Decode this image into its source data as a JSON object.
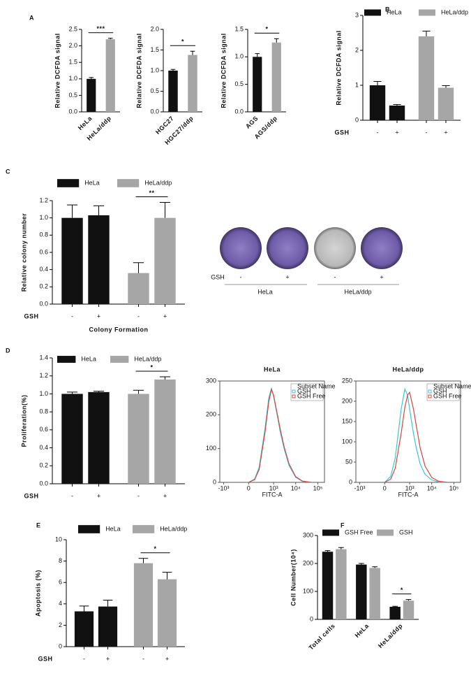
{
  "chart_data": [
    {
      "type": "bar",
      "panel": "A",
      "y_label": "Relative DCFDA signal",
      "categories": [
        "HeLa",
        "HeLa/ddp"
      ],
      "values": [
        1.0,
        2.2
      ],
      "errors": [
        0.04,
        0.03
      ],
      "colors": [
        "#111111",
        "#a6a6a6"
      ],
      "ylim": [
        0,
        2.5
      ],
      "yticks": [
        {
          "value": 0,
          "label": "0.0"
        },
        {
          "value": 0.5,
          "label": "0.5"
        },
        {
          "value": 1,
          "label": "1.0"
        },
        {
          "value": 1.5,
          "label": "1.5"
        },
        {
          "value": 2,
          "label": "2.0"
        },
        {
          "value": 2.5,
          "label": "2.5"
        }
      ],
      "significance": "***"
    },
    {
      "type": "bar",
      "y_label": "Relative DCFDA signal",
      "categories": [
        "HGC27",
        "HGC27/ddp"
      ],
      "values": [
        1.0,
        1.38
      ],
      "errors": [
        0.03,
        0.09
      ],
      "colors": [
        "#111111",
        "#a6a6a6"
      ],
      "ylim": [
        0,
        2
      ],
      "yticks": [
        {
          "value": 0,
          "label": "0.0"
        },
        {
          "value": 0.5,
          "label": "0.5"
        },
        {
          "value": 1,
          "label": "1.0"
        },
        {
          "value": 1.5,
          "label": "1.5"
        },
        {
          "value": 2,
          "label": "2.0"
        }
      ],
      "significance": "*"
    },
    {
      "type": "bar",
      "y_label": "Relative DCFDA signal",
      "categories": [
        "AGS",
        "AGS/ddp"
      ],
      "values": [
        1.0,
        1.26
      ],
      "errors": [
        0.06,
        0.07
      ],
      "colors": [
        "#111111",
        "#a6a6a6"
      ],
      "ylim": [
        0,
        1.5
      ],
      "yticks": [
        {
          "value": 0,
          "label": "0.0"
        },
        {
          "value": 0.5,
          "label": "0.5"
        },
        {
          "value": 1,
          "label": "1.0"
        },
        {
          "value": 1.5,
          "label": "1.5"
        }
      ],
      "significance": "*"
    },
    {
      "type": "bar",
      "panel": "B",
      "group_by": "series",
      "y_label": "Relative DCFDA signal",
      "x_label": "GSH",
      "categories": [
        "-",
        "+"
      ],
      "series": [
        {
          "name": "HeLa",
          "color": "#111111",
          "values": [
            1.0,
            0.42
          ],
          "errors": [
            0.11,
            0.03
          ]
        },
        {
          "name": "HeLa/ddp",
          "color": "#a6a6a6",
          "values": [
            2.4,
            0.93
          ],
          "errors": [
            0.15,
            0.06
          ]
        }
      ],
      "ylim": [
        0,
        3
      ],
      "yticks": [
        0,
        1,
        2,
        3
      ]
    },
    {
      "type": "bar",
      "panel": "C",
      "group_by": "series",
      "y_label": "Relative colony number",
      "x_label": "GSH",
      "x_title": "Colony Formation",
      "categories": [
        "-",
        "+"
      ],
      "series": [
        {
          "name": "HeLa",
          "color": "#111111",
          "values": [
            1.0,
            1.03
          ],
          "errors": [
            0.15,
            0.11
          ]
        },
        {
          "name": "HeLa/ddp",
          "color": "#a6a6a6",
          "values": [
            0.36,
            1.0
          ],
          "errors": [
            0.12,
            0.18
          ]
        }
      ],
      "ylim": [
        0,
        1.2
      ],
      "yticks": [
        {
          "value": 0,
          "label": "0.0"
        },
        {
          "value": 0.2,
          "label": "0.2"
        },
        {
          "value": 0.4,
          "label": "0.4"
        },
        {
          "value": 0.6,
          "label": "0.6"
        },
        {
          "value": 0.8,
          "label": "0.8"
        },
        {
          "value": 1,
          "label": "1.0"
        },
        {
          "value": 1.2,
          "label": "1.2"
        }
      ],
      "significance": "**"
    },
    {
      "type": "bar",
      "panel": "D",
      "group_by": "series",
      "y_label": "Proliferation(%)",
      "x_label": "GSH",
      "categories": [
        "-",
        "+"
      ],
      "series": [
        {
          "name": "HeLa",
          "color": "#111111",
          "values": [
            1.0,
            1.02
          ],
          "errors": [
            0.02,
            0.01
          ]
        },
        {
          "name": "HeLa/ddp",
          "color": "#a6a6a6",
          "values": [
            1.0,
            1.16
          ],
          "errors": [
            0.04,
            0.03
          ]
        }
      ],
      "ylim": [
        0,
        1.4
      ],
      "yticks": [
        {
          "value": 0,
          "label": "0.0"
        },
        {
          "value": 0.2,
          "label": "0.2"
        },
        {
          "value": 0.4,
          "label": "0.4"
        },
        {
          "value": 0.6,
          "label": "0.6"
        },
        {
          "value": 0.8,
          "label": "0.8"
        },
        {
          "value": 1,
          "label": "1.0"
        },
        {
          "value": 1.2,
          "label": "1.2"
        },
        {
          "value": 1.4,
          "label": "1.4"
        }
      ],
      "significance": "*"
    },
    {
      "type": "line",
      "title": "HeLa",
      "x_label": "FITC-A",
      "xscale": "asinh",
      "xlim": [
        -1500,
        200000
      ],
      "xticks": [
        {
          "value": -1000,
          "label": "-10³"
        },
        0,
        {
          "value": 1000,
          "label": "10³"
        },
        {
          "value": 10000,
          "label": "10⁴"
        },
        {
          "value": 100000,
          "label": "10⁵"
        }
      ],
      "ylim": [
        0,
        300
      ],
      "yticks": [
        0,
        100,
        200,
        300
      ],
      "legend_title": "Subset Name",
      "x": [
        0,
        100,
        200,
        400,
        600,
        800,
        1000,
        1500,
        2000,
        3000,
        5000,
        10000,
        20000,
        50000
      ],
      "series": [
        {
          "name": "GSH",
          "color": "#35c9d6",
          "values": [
            0,
            10,
            45,
            160,
            250,
            278,
            255,
            195,
            150,
            100,
            50,
            15,
            3,
            0
          ]
        },
        {
          "name": "GSH Free",
          "color": "#d9443f",
          "values": [
            0,
            8,
            38,
            148,
            238,
            275,
            258,
            200,
            158,
            106,
            55,
            17,
            4,
            0
          ]
        }
      ]
    },
    {
      "type": "line",
      "title": "HeLa/ddp",
      "x_label": "FITC-A",
      "xscale": "asinh",
      "xlim": [
        -1500,
        200000
      ],
      "xticks": [
        {
          "value": -1000,
          "label": "-10³"
        },
        0,
        {
          "value": 1000,
          "label": "10³"
        },
        {
          "value": 10000,
          "label": "10⁴"
        },
        {
          "value": 100000,
          "label": "10⁵"
        }
      ],
      "ylim": [
        0,
        250
      ],
      "yticks": [
        0,
        50,
        100,
        150,
        200,
        250
      ],
      "legend_title": "Subset Name",
      "x": [
        0,
        100,
        200,
        400,
        600,
        800,
        1000,
        1500,
        2000,
        3000,
        5000,
        10000,
        20000,
        50000
      ],
      "series": [
        {
          "name": "GSH",
          "color": "#35c9d6",
          "values": [
            0,
            15,
            60,
            180,
            230,
            215,
            180,
            120,
            85,
            45,
            20,
            6,
            1,
            0
          ]
        },
        {
          "name": "GSH Free",
          "color": "#d9443f",
          "values": [
            0,
            8,
            35,
            120,
            185,
            215,
            222,
            180,
            140,
            85,
            40,
            12,
            3,
            0
          ]
        }
      ]
    },
    {
      "type": "bar",
      "panel": "E",
      "group_by": "series",
      "y_label": "Apoptosis (%)",
      "x_label": "GSH",
      "categories": [
        "-",
        "+"
      ],
      "series": [
        {
          "name": "HeLa",
          "color": "#111111",
          "values": [
            3.3,
            3.75
          ],
          "errors": [
            0.5,
            0.6
          ]
        },
        {
          "name": "HeLa/ddp",
          "color": "#a6a6a6",
          "values": [
            7.8,
            6.3
          ],
          "errors": [
            0.45,
            0.65
          ]
        }
      ],
      "ylim": [
        0,
        10
      ],
      "yticks": [
        0,
        2,
        4,
        6,
        8,
        10
      ],
      "significance": "*"
    },
    {
      "type": "bar",
      "panel": "F",
      "group_by": "category",
      "y_label": "Cell Number(10⁴)",
      "categories": [
        "Total cells",
        "HeLa",
        "HeLa/ddp"
      ],
      "series": [
        {
          "name": "GSH Free",
          "color": "#111111",
          "values": [
            242,
            196,
            45
          ],
          "errors": [
            4,
            4,
            2
          ]
        },
        {
          "name": "GSH",
          "color": "#a6a6a6",
          "values": [
            251,
            184,
            67
          ],
          "errors": [
            6,
            4,
            4
          ]
        }
      ],
      "ylim": [
        0,
        300
      ],
      "yticks": [
        0,
        100,
        200,
        300
      ],
      "significance": "*"
    }
  ],
  "colony_image": {
    "row_label": "GSH",
    "signs": [
      "-",
      "+",
      "-",
      "+"
    ],
    "groups": [
      "HeLa",
      "HeLa/ddp"
    ]
  }
}
